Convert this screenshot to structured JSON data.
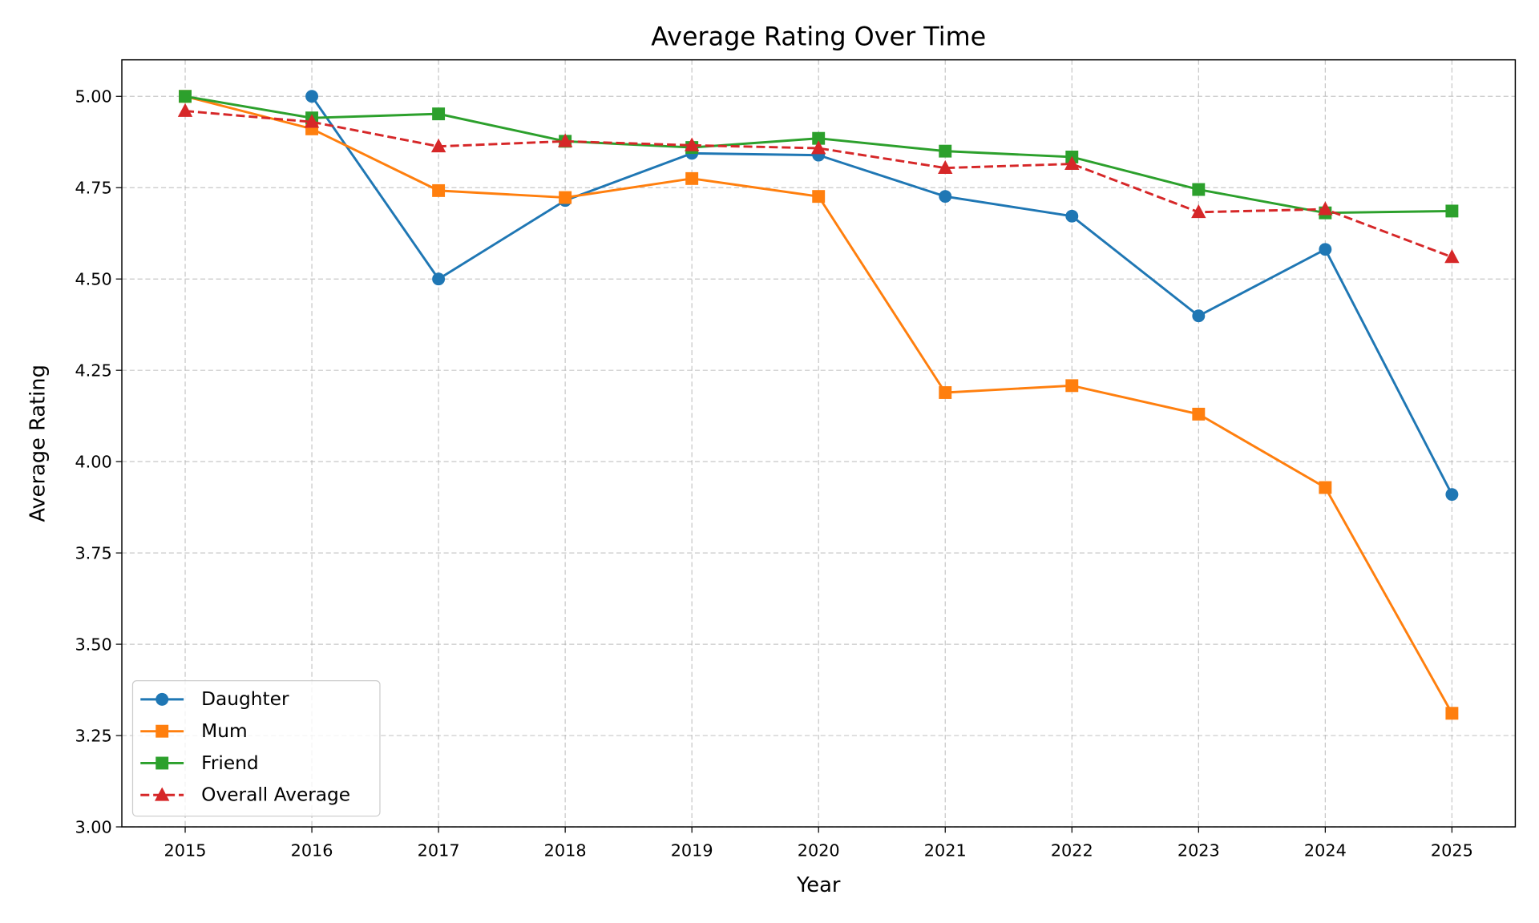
{
  "chart_data": {
    "type": "line",
    "title": "Average Rating Over Time",
    "xlabel": "Year",
    "ylabel": "Average Rating",
    "xlim": [
      2014.5,
      2025.5
    ],
    "ylim": [
      3.0,
      5.1
    ],
    "grid": true,
    "legend_position": "lower-left",
    "x": [
      2015,
      2016,
      2017,
      2018,
      2019,
      2020,
      2021,
      2022,
      2023,
      2024,
      2025
    ],
    "x_tick_labels": [
      "2015",
      "2016",
      "2017",
      "2018",
      "2019",
      "2020",
      "2021",
      "2022",
      "2023",
      "2024",
      "2025"
    ],
    "y_ticks": [
      3.0,
      3.25,
      3.5,
      3.75,
      4.0,
      4.25,
      4.5,
      4.75,
      5.0
    ],
    "y_tick_labels": [
      "3.00",
      "3.25",
      "3.50",
      "3.75",
      "4.00",
      "4.25",
      "4.50",
      "4.75",
      "5.00"
    ],
    "series": [
      {
        "name": "Daughter",
        "color": "#1f77b4",
        "marker": "circle",
        "dash": false,
        "values": [
          null,
          5.0,
          4.5,
          4.715,
          4.844,
          4.839,
          4.726,
          4.672,
          4.399,
          4.581,
          3.91
        ]
      },
      {
        "name": "Mum",
        "color": "#ff7f0e",
        "marker": "square",
        "dash": false,
        "values": [
          5.0,
          4.911,
          4.742,
          4.723,
          4.775,
          4.726,
          4.189,
          4.208,
          4.13,
          3.929,
          3.311
        ]
      },
      {
        "name": "Friend",
        "color": "#2ca02c",
        "marker": "square",
        "dash": false,
        "values": [
          5.0,
          4.941,
          4.952,
          4.877,
          4.86,
          4.885,
          4.85,
          4.834,
          4.745,
          4.681,
          4.686
        ]
      },
      {
        "name": "Overall Average",
        "color": "#d62728",
        "marker": "triangle",
        "dash": true,
        "values": [
          4.96,
          4.93,
          4.863,
          4.877,
          4.866,
          4.858,
          4.804,
          4.815,
          4.683,
          4.691,
          4.56
        ]
      }
    ]
  }
}
